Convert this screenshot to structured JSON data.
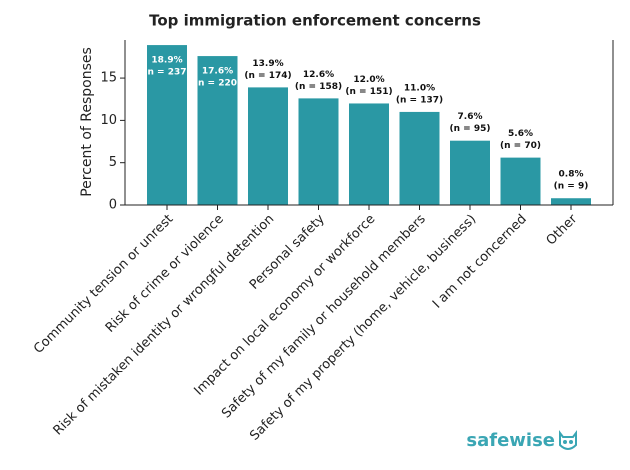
{
  "chart_data": {
    "type": "bar",
    "title": "Top immigration enforcement concerns",
    "y_label": "Percent of Responses",
    "categories": [
      "Community tension or unrest",
      "Risk of crime or violence",
      "Risk of mistaken identity or wrongful detention",
      "Personal safety",
      "Impact on local economy or workforce",
      "Safety of my family or household members",
      "Safety of my property (home, vehicle, business)",
      "I am not concerned",
      "Other"
    ],
    "values": [
      18.9,
      17.6,
      13.9,
      12.6,
      12.0,
      11.0,
      7.6,
      5.6,
      0.8
    ],
    "value_labels": [
      "18.9%",
      "17.6%",
      "13.9%",
      "12.6%",
      "12.0%",
      "11.0%",
      "7.6%",
      "5.6%",
      "0.8%"
    ],
    "n_labels": [
      "(n = 237)",
      "(n = 220)",
      "(n = 174)",
      "(n = 158)",
      "(n = 151)",
      "(n = 137)",
      "(n = 95)",
      "(n = 70)",
      "(n = 9)"
    ],
    "color": "#2a98a4",
    "ylim": [
      0,
      19.5
    ],
    "yticks": [
      0,
      5,
      10,
      15
    ],
    "logo_text": "safewise"
  }
}
